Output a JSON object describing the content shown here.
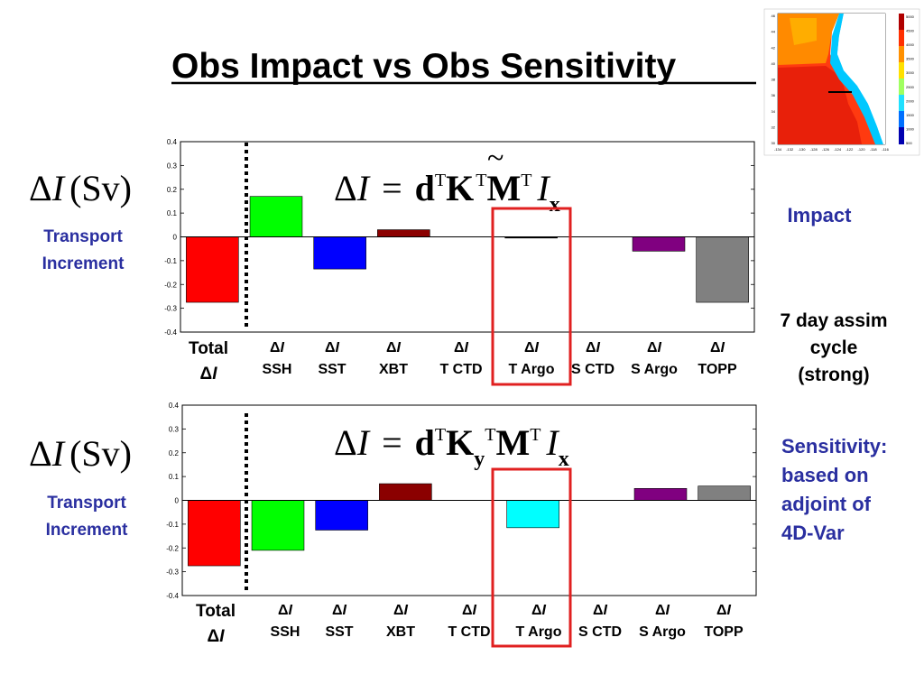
{
  "title": "Obs Impact vs Obs Sensitivity",
  "delta_symbol": "Δ",
  "axis_title": {
    "symbol": "I",
    "unit": "(Sv)",
    "sub1": "Transport",
    "sub2": "Increment"
  },
  "equation_top": {
    "lhs": "I",
    "eq": "=",
    "d": "d",
    "T": "T",
    "K": "K",
    "tilde": "~",
    "M": "M",
    "Ix": "I",
    "x": "x"
  },
  "equation_bottom": {
    "lhs": "I",
    "eq": "=",
    "d": "d",
    "T": "T",
    "K": "K",
    "y": "y",
    "M": "M",
    "Ix": "I",
    "x": "x"
  },
  "side_notes": {
    "impact": "Impact",
    "assim_1": "7 day assim",
    "assim_2": "cycle",
    "assim_3": "(strong)",
    "sens_1": "Sensitivity:",
    "sens_2": "based on",
    "sens_3": "adjoint of",
    "sens_4": "4D-Var"
  },
  "category_labels": {
    "total_1": "Total",
    "total_2_symbol": "I",
    "symbol": "I",
    "names": [
      "SSH",
      "SST",
      "XBT",
      "T CTD",
      "T Argo",
      "S CTD",
      "S Argo",
      "TOPP"
    ]
  },
  "colors": {
    "title_text": "#000000",
    "note_text": "#2a2fa0",
    "highlight_box": "#e02020",
    "dashed_separator": "#000000"
  },
  "chart_data": [
    {
      "type": "bar",
      "name": "impact",
      "categories": [
        "Total ΔI",
        "ΔI SSH",
        "ΔI SST",
        "ΔI XBT",
        "ΔI T CTD",
        "ΔI T Argo",
        "ΔI S CTD",
        "ΔI S Argo",
        "ΔI TOPP"
      ],
      "values": [
        -0.275,
        0.17,
        -0.135,
        0.03,
        0.0,
        -0.005,
        0.0,
        -0.06,
        -0.275
      ],
      "colors": [
        "#ff0000",
        "#00ff00",
        "#0000ff",
        "#8b0000",
        "#ffffff",
        "#000000",
        "#ffffff",
        "#800080",
        "#808080"
      ],
      "ylim": [
        -0.4,
        0.4
      ],
      "yticks": [
        "0.4",
        "0.3",
        "0.2",
        "0.1",
        "0",
        "-0.1",
        "-0.2",
        "-0.3",
        "-0.4"
      ],
      "grid": false
    },
    {
      "type": "bar",
      "name": "sensitivity",
      "categories": [
        "Total ΔI",
        "ΔI SSH",
        "ΔI SST",
        "ΔI XBT",
        "ΔI T CTD",
        "ΔI T Argo",
        "ΔI S CTD",
        "ΔI S Argo",
        "ΔI TOPP"
      ],
      "values": [
        -0.275,
        -0.21,
        -0.125,
        0.07,
        0.0,
        -0.115,
        0.0,
        0.05,
        0.06
      ],
      "colors": [
        "#ff0000",
        "#00ff00",
        "#0000ff",
        "#8b0000",
        "#ffffff",
        "#00ffff",
        "#ffffff",
        "#800080",
        "#808080"
      ],
      "ylim": [
        -0.4,
        0.4
      ],
      "yticks": [
        "0.4",
        "0.3",
        "0.2",
        "0.1",
        "0",
        "-0.1",
        "-0.2",
        "-0.3",
        "-0.4"
      ],
      "grid": false
    }
  ],
  "map_inset": {
    "yticks": [
      "46",
      "44",
      "42",
      "40",
      "38",
      "36",
      "34",
      "32",
      "30"
    ],
    "xticks": [
      "-134",
      "-132",
      "-130",
      "-128",
      "-126",
      "-124",
      "-122",
      "-120",
      "-118",
      "-116"
    ],
    "colorbar_ticks": [
      "5000",
      "4500",
      "4000",
      "3500",
      "3000",
      "2500",
      "2000",
      "1500",
      "1000",
      "500"
    ]
  }
}
